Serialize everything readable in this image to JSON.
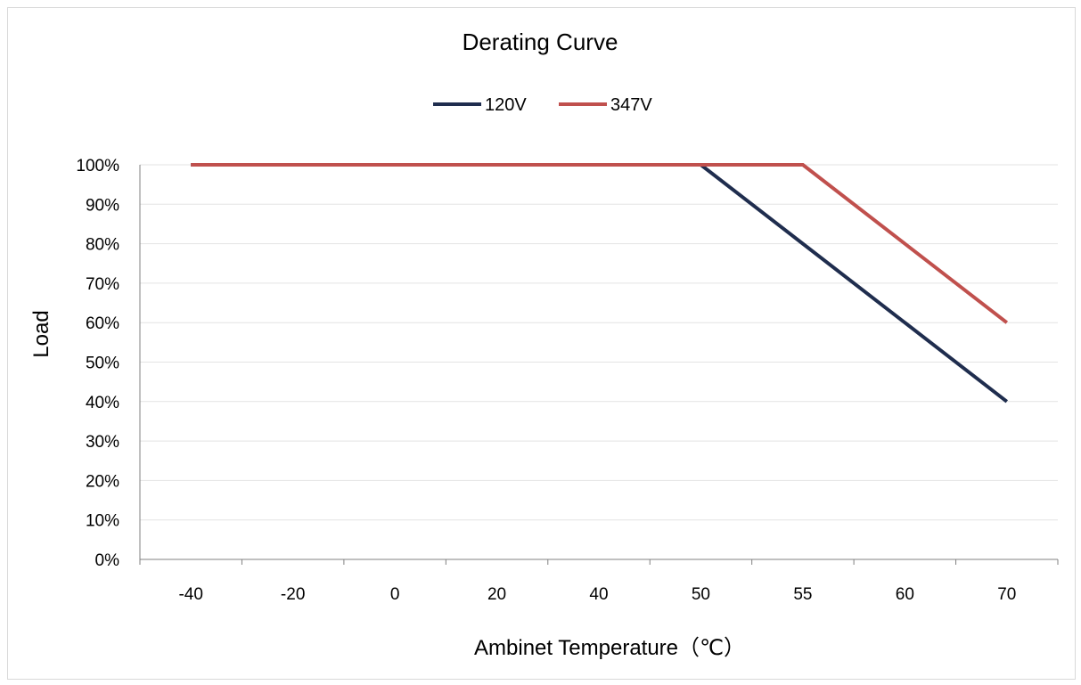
{
  "chart_data": {
    "type": "line",
    "title": "Derating Curve",
    "xlabel": "Ambinet Temperature（℃）",
    "ylabel": "Load",
    "categories": [
      "-40",
      "-20",
      "0",
      "20",
      "40",
      "50",
      "55",
      "60",
      "70"
    ],
    "y_ticks": [
      "0%",
      "10%",
      "20%",
      "30%",
      "40%",
      "50%",
      "60%",
      "70%",
      "80%",
      "90%",
      "100%"
    ],
    "ylim": [
      0,
      100
    ],
    "grid": true,
    "legend_position": "top-center",
    "series": [
      {
        "name": "120V",
        "color": "#1f2d4e",
        "points": [
          {
            "x": "-40",
            "y": 100
          },
          {
            "x": "50",
            "y": 100
          },
          {
            "x": "70",
            "y": 40
          }
        ]
      },
      {
        "name": "347V",
        "color": "#c0504d",
        "points": [
          {
            "x": "-40",
            "y": 100
          },
          {
            "x": "55",
            "y": 100
          },
          {
            "x": "70",
            "y": 60
          }
        ]
      }
    ]
  }
}
